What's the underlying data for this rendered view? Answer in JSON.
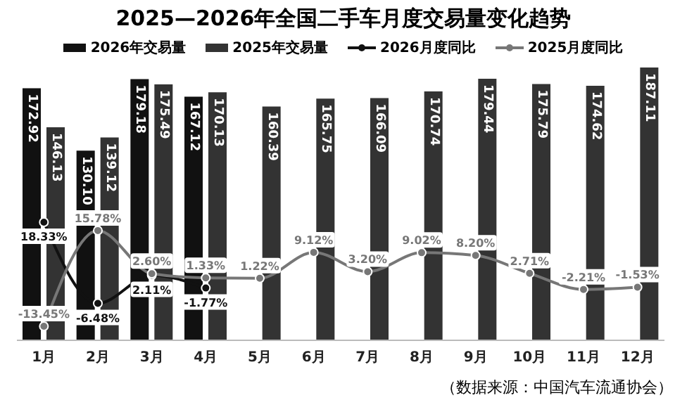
{
  "chart_data": {
    "type": "bar",
    "title": "2025—2026年全国二手车月度交易量变化趋势",
    "categories": [
      "1月",
      "2月",
      "3月",
      "4月",
      "5月",
      "6月",
      "7月",
      "8月",
      "9月",
      "10月",
      "11月",
      "12月"
    ],
    "series": [
      {
        "name": "2026年交易量",
        "color": "#111111",
        "values": [
          172.92,
          130.1,
          179.18,
          167.12,
          null,
          null,
          null,
          null,
          null,
          null,
          null,
          null
        ],
        "value_labels": [
          "172.92",
          "130.10",
          "179.18",
          "167.12",
          null,
          null,
          null,
          null,
          null,
          null,
          null,
          null
        ]
      },
      {
        "name": "2025年交易量",
        "color": "#333333",
        "values": [
          146.13,
          139.12,
          175.49,
          170.13,
          160.39,
          165.75,
          166.09,
          170.74,
          179.44,
          175.79,
          174.62,
          187.11
        ],
        "value_labels": [
          "146.13",
          "139.12",
          "175.49",
          "170.13",
          "160.39",
          "165.75",
          "166.09",
          "170.74",
          "179.44",
          "175.79",
          "174.62",
          "187.11"
        ]
      },
      {
        "name": "2026月度同比",
        "type": "line",
        "axis": "y2",
        "color": "#111111",
        "values": [
          18.33,
          -6.48,
          2.11,
          -1.77,
          null,
          null,
          null,
          null,
          null,
          null,
          null,
          null
        ],
        "value_labels": [
          "18.33%",
          "-6.48%",
          "2.11%",
          "-1.77%",
          null,
          null,
          null,
          null,
          null,
          null,
          null,
          null
        ]
      },
      {
        "name": "2025月度同比",
        "type": "line",
        "axis": "y2",
        "color": "#777777",
        "values": [
          -13.45,
          15.78,
          2.6,
          1.33,
          1.22,
          9.12,
          3.2,
          9.02,
          8.2,
          2.71,
          -2.21,
          -1.53
        ],
        "value_labels": [
          "-13.45%",
          "15.78%",
          "2.60%",
          "1.33%",
          "1.22%",
          "9.12%",
          "3.20%",
          "9.02%",
          "8.20%",
          "2.71%",
          "-2.21%",
          "-1.53%"
        ]
      }
    ],
    "legend": "top",
    "marker": "circle",
    "line_style": "solid",
    "annotations": [
      "（数据来源：中国汽车流通协会）"
    ]
  }
}
